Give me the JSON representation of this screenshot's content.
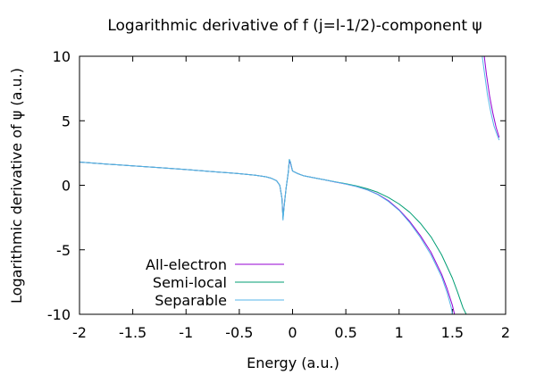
{
  "chart_data": {
    "type": "line",
    "title": "Logarithmic derivative of f (j=l-1/2)-component ψ",
    "xlabel": "Energy (a.u.)",
    "ylabel": "Logarithmic derivative of ψ (a.u.)",
    "xlim": [
      -2,
      2
    ],
    "ylim": [
      -10,
      10
    ],
    "xticks": [
      -2,
      -1.5,
      -1,
      -0.5,
      0,
      0.5,
      1,
      1.5,
      2
    ],
    "xtick_labels": [
      "-2",
      "-1.5",
      "-1",
      "-0.5",
      "0",
      "0.5",
      "1",
      "1.5",
      "2"
    ],
    "yticks": [
      -10,
      -5,
      0,
      5,
      10
    ],
    "ytick_labels": [
      "-10",
      "-5",
      "0",
      "5",
      "10"
    ],
    "grid": false,
    "legend_position": "bottom-left",
    "series": [
      {
        "name": "All-electron",
        "color": "#9400d3",
        "segments": [
          [
            [
              -2.0,
              1.8
            ],
            [
              -1.75,
              1.65
            ],
            [
              -1.5,
              1.5
            ],
            [
              -1.25,
              1.36
            ],
            [
              -1.0,
              1.22
            ],
            [
              -0.75,
              1.06
            ],
            [
              -0.5,
              0.9
            ],
            [
              -0.35,
              0.78
            ],
            [
              -0.25,
              0.66
            ],
            [
              -0.2,
              0.55
            ],
            [
              -0.15,
              0.35
            ],
            [
              -0.12,
              0.0
            ],
            [
              -0.1,
              -1.0
            ],
            [
              -0.09,
              -2.5
            ],
            [
              -0.08,
              -1.6
            ],
            [
              -0.06,
              -0.2
            ],
            [
              -0.04,
              1.0
            ],
            [
              -0.03,
              1.9
            ],
            [
              -0.02,
              1.7
            ],
            [
              0.0,
              1.1
            ],
            [
              0.05,
              0.9
            ],
            [
              0.1,
              0.75
            ],
            [
              0.2,
              0.58
            ],
            [
              0.3,
              0.42
            ],
            [
              0.4,
              0.25
            ],
            [
              0.5,
              0.1
            ],
            [
              0.6,
              -0.1
            ],
            [
              0.7,
              -0.35
            ],
            [
              0.8,
              -0.7
            ],
            [
              0.9,
              -1.2
            ],
            [
              1.0,
              -1.9
            ],
            [
              1.1,
              -2.8
            ],
            [
              1.2,
              -3.9
            ],
            [
              1.3,
              -5.2
            ],
            [
              1.4,
              -6.9
            ],
            [
              1.45,
              -8.0
            ],
            [
              1.5,
              -9.3
            ],
            [
              1.52,
              -10.0
            ]
          ],
          [
            [
              1.8,
              10.0
            ],
            [
              1.82,
              8.6
            ],
            [
              1.85,
              6.9
            ],
            [
              1.88,
              5.6
            ],
            [
              1.91,
              4.5
            ],
            [
              1.94,
              3.7
            ]
          ]
        ]
      },
      {
        "name": "Semi-local",
        "color": "#009e73",
        "segments": [
          [
            [
              -2.0,
              1.8
            ],
            [
              -1.75,
              1.65
            ],
            [
              -1.5,
              1.5
            ],
            [
              -1.25,
              1.36
            ],
            [
              -1.0,
              1.22
            ],
            [
              -0.75,
              1.06
            ],
            [
              -0.5,
              0.9
            ],
            [
              -0.35,
              0.78
            ],
            [
              -0.25,
              0.66
            ],
            [
              -0.2,
              0.55
            ],
            [
              -0.15,
              0.35
            ],
            [
              -0.12,
              0.0
            ],
            [
              -0.1,
              -1.0
            ],
            [
              -0.09,
              -2.6
            ],
            [
              -0.08,
              -1.7
            ],
            [
              -0.06,
              -0.2
            ],
            [
              -0.04,
              1.0
            ],
            [
              -0.03,
              2.0
            ],
            [
              -0.02,
              1.8
            ],
            [
              0.0,
              1.1
            ],
            [
              0.05,
              0.9
            ],
            [
              0.1,
              0.75
            ],
            [
              0.2,
              0.58
            ],
            [
              0.3,
              0.42
            ],
            [
              0.4,
              0.27
            ],
            [
              0.5,
              0.12
            ],
            [
              0.6,
              -0.05
            ],
            [
              0.7,
              -0.27
            ],
            [
              0.8,
              -0.55
            ],
            [
              0.9,
              -0.95
            ],
            [
              1.0,
              -1.45
            ],
            [
              1.1,
              -2.1
            ],
            [
              1.2,
              -2.95
            ],
            [
              1.3,
              -4.0
            ],
            [
              1.4,
              -5.4
            ],
            [
              1.5,
              -7.2
            ],
            [
              1.55,
              -8.3
            ],
            [
              1.6,
              -9.5
            ],
            [
              1.63,
              -10.0
            ]
          ]
        ]
      },
      {
        "name": "Separable",
        "color": "#56b4e9",
        "segments": [
          [
            [
              -2.0,
              1.8
            ],
            [
              -1.75,
              1.65
            ],
            [
              -1.5,
              1.5
            ],
            [
              -1.25,
              1.36
            ],
            [
              -1.0,
              1.22
            ],
            [
              -0.75,
              1.06
            ],
            [
              -0.5,
              0.9
            ],
            [
              -0.35,
              0.78
            ],
            [
              -0.25,
              0.66
            ],
            [
              -0.2,
              0.55
            ],
            [
              -0.15,
              0.35
            ],
            [
              -0.12,
              0.0
            ],
            [
              -0.1,
              -1.0
            ],
            [
              -0.09,
              -2.7
            ],
            [
              -0.08,
              -1.7
            ],
            [
              -0.06,
              -0.2
            ],
            [
              -0.04,
              1.0
            ],
            [
              -0.03,
              2.0
            ],
            [
              -0.02,
              1.8
            ],
            [
              0.0,
              1.1
            ],
            [
              0.05,
              0.9
            ],
            [
              0.1,
              0.75
            ],
            [
              0.2,
              0.58
            ],
            [
              0.3,
              0.42
            ],
            [
              0.4,
              0.26
            ],
            [
              0.5,
              0.1
            ],
            [
              0.6,
              -0.1
            ],
            [
              0.7,
              -0.36
            ],
            [
              0.8,
              -0.72
            ],
            [
              0.9,
              -1.25
            ],
            [
              1.0,
              -1.95
            ],
            [
              1.1,
              -2.9
            ],
            [
              1.2,
              -4.05
            ],
            [
              1.3,
              -5.4
            ],
            [
              1.4,
              -7.1
            ],
            [
              1.45,
              -8.3
            ],
            [
              1.49,
              -9.5
            ],
            [
              1.5,
              -10.0
            ]
          ],
          [
            [
              1.78,
              10.0
            ],
            [
              1.8,
              8.8
            ],
            [
              1.83,
              7.0
            ],
            [
              1.86,
              5.7
            ],
            [
              1.89,
              4.6
            ],
            [
              1.92,
              3.9
            ],
            [
              1.94,
              3.5
            ]
          ]
        ]
      }
    ]
  }
}
